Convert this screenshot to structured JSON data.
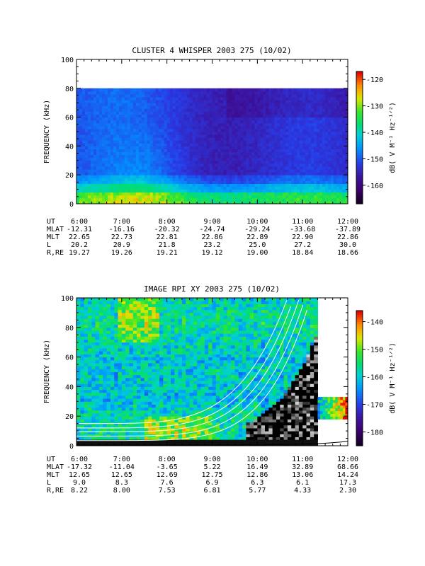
{
  "chart_data": [
    {
      "type": "heatmap",
      "title": "CLUSTER 4 WHISPER 2003 275 (10/02)",
      "ylabel": "FREQUENCY (kHz)",
      "ylim": [
        0,
        100
      ],
      "xlim_hours": [
        6,
        12
      ],
      "y_ticks": [
        "0",
        "20",
        "40",
        "60",
        "80",
        "100"
      ],
      "x_ticks": [
        "6:00",
        "7:00",
        "8:00",
        "9:00",
        "10:00",
        "11:00",
        "12:00"
      ],
      "data_top_khz": 80,
      "colorbar": {
        "label": "dB( V M⁻¹ Hz⁻¹ᐟ²)",
        "ticks": [
          "-120",
          "-130",
          "-140",
          "-150",
          "-160"
        ],
        "range": [
          -167,
          -117
        ]
      },
      "ephemeris": [
        {
          "label": "UT",
          "values": [
            "6:00",
            "7:00",
            "8:00",
            "9:00",
            "10:00",
            "11:00",
            "12:00"
          ]
        },
        {
          "label": "MLAT",
          "values": [
            "-12.31",
            "-16.16",
            "-20.32",
            "-24.74",
            "-29.24",
            "-33.68",
            "-37.89"
          ]
        },
        {
          "label": "MLT",
          "values": [
            "22.65",
            "22.73",
            "22.81",
            "22.86",
            "22.89",
            "22.90",
            "22.86"
          ]
        },
        {
          "label": "L",
          "values": [
            "20.2",
            "20.9",
            "21.8",
            "23.2",
            "25.0",
            "27.2",
            "30.0"
          ]
        },
        {
          "label": "R,RE",
          "values": [
            "19.27",
            "19.26",
            "19.21",
            "19.12",
            "19.00",
            "18.84",
            "18.66"
          ]
        }
      ]
    },
    {
      "type": "heatmap",
      "title": "IMAGE RPI XY 2003 275 (10/02)",
      "ylabel": "FREQUENCY (kHz)",
      "ylim": [
        0,
        100
      ],
      "xlim_hours": [
        6,
        12
      ],
      "y_ticks": [
        "0",
        "20",
        "40",
        "60",
        "80",
        "100"
      ],
      "x_ticks": [
        "6:00",
        "7:00",
        "8:00",
        "9:00",
        "10:00",
        "11:00",
        "12:00"
      ],
      "colorbar": {
        "label": "dB( V M⁻¹ Hz⁻¹ᐟ²)",
        "ticks": [
          "-140",
          "-150",
          "-160",
          "-170",
          "-180"
        ],
        "range": [
          -185,
          -136
        ]
      },
      "ephemeris": [
        {
          "label": "UT",
          "values": [
            "6:00",
            "7:00",
            "8:00",
            "9:00",
            "10:00",
            "11:00",
            "12:00"
          ]
        },
        {
          "label": "MLAT",
          "values": [
            "-17.32",
            "-11.04",
            "-3.65",
            "5.22",
            "16.49",
            "32.89",
            "68.66"
          ]
        },
        {
          "label": "MLT",
          "values": [
            "12.65",
            "12.65",
            "12.69",
            "12.75",
            "12.86",
            "13.06",
            "14.24"
          ]
        },
        {
          "label": "L",
          "values": [
            "9.0",
            "8.3",
            "7.6",
            "6.9",
            "6.3",
            "6.1",
            "17.3"
          ]
        },
        {
          "label": "R,RE",
          "values": [
            "8.22",
            "8.00",
            "7.53",
            "6.81",
            "5.77",
            "4.33",
            "2.30"
          ]
        }
      ]
    }
  ]
}
